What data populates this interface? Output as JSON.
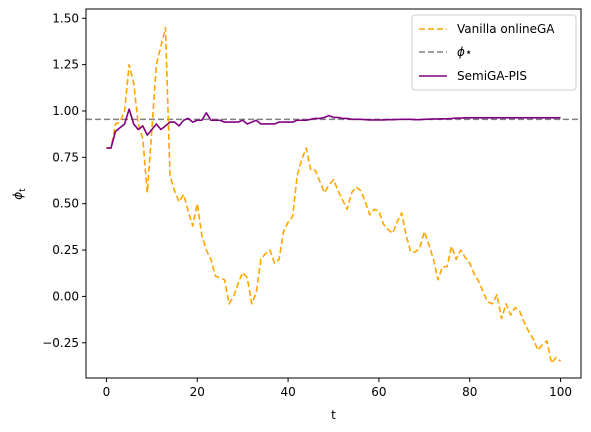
{
  "chart_data": {
    "type": "line",
    "title": "",
    "xlabel": "t",
    "ylabel": "φt",
    "xlim": [
      -4.5,
      104.5
    ],
    "ylim": [
      -0.44,
      1.55
    ],
    "xticks": [
      0,
      20,
      40,
      60,
      80,
      100
    ],
    "xtick_labels": [
      "0",
      "20",
      "40",
      "60",
      "80",
      "100"
    ],
    "yticks": [
      -0.25,
      0.0,
      0.25,
      0.5,
      0.75,
      1.0,
      1.25,
      1.5
    ],
    "ytick_labels": [
      "−0.25",
      "0.00",
      "0.25",
      "0.50",
      "0.75",
      "1.00",
      "1.25",
      "1.50"
    ],
    "grid": false,
    "legend_position": "top-right",
    "legend": {
      "vanilla": "Vanilla onlineGA",
      "phi_star": "ϕ⋆",
      "semiga": "SemiGA-PIS"
    },
    "reference_line": {
      "name": "ϕ⋆",
      "y": 0.955,
      "color": "#808080",
      "style": "dashed"
    },
    "series": [
      {
        "name": "Vanilla onlineGA",
        "color": "#ffa500",
        "style": "dashed",
        "x": [
          0,
          1,
          2,
          3,
          4,
          5,
          6,
          7,
          8,
          9,
          10,
          11,
          12,
          13,
          14,
          15,
          16,
          17,
          18,
          19,
          20,
          21,
          22,
          23,
          24,
          25,
          26,
          27,
          28,
          29,
          30,
          31,
          32,
          33,
          34,
          35,
          36,
          37,
          38,
          39,
          40,
          41,
          42,
          43,
          44,
          45,
          46,
          47,
          48,
          49,
          50,
          51,
          52,
          53,
          54,
          55,
          56,
          57,
          58,
          59,
          60,
          61,
          62,
          63,
          64,
          65,
          66,
          67,
          68,
          69,
          70,
          71,
          72,
          73,
          74,
          75,
          76,
          77,
          78,
          79,
          80,
          81,
          82,
          83,
          84,
          85,
          86,
          87,
          88,
          89,
          90,
          91,
          92,
          93,
          94,
          95,
          96,
          97,
          98,
          99,
          100
        ],
        "values": [
          0.8,
          0.8,
          0.93,
          0.94,
          1.0,
          1.25,
          1.15,
          0.93,
          0.85,
          0.56,
          0.9,
          1.25,
          1.35,
          1.45,
          0.65,
          0.57,
          0.51,
          0.55,
          0.46,
          0.38,
          0.5,
          0.33,
          0.25,
          0.2,
          0.11,
          0.1,
          0.09,
          -0.04,
          0.0,
          0.07,
          0.13,
          0.1,
          -0.04,
          0.02,
          0.2,
          0.23,
          0.25,
          0.18,
          0.2,
          0.35,
          0.4,
          0.43,
          0.65,
          0.74,
          0.8,
          0.68,
          0.68,
          0.62,
          0.56,
          0.6,
          0.63,
          0.57,
          0.52,
          0.47,
          0.56,
          0.59,
          0.57,
          0.51,
          0.44,
          0.47,
          0.46,
          0.39,
          0.36,
          0.34,
          0.4,
          0.45,
          0.33,
          0.24,
          0.24,
          0.26,
          0.35,
          0.28,
          0.2,
          0.09,
          0.16,
          0.16,
          0.27,
          0.2,
          0.25,
          0.21,
          0.18,
          0.12,
          0.08,
          0.02,
          -0.03,
          -0.04,
          0.01,
          -0.12,
          -0.04,
          -0.1,
          -0.06,
          -0.08,
          -0.14,
          -0.19,
          -0.23,
          -0.29,
          -0.26,
          -0.24,
          -0.36,
          -0.33,
          -0.35
        ]
      },
      {
        "name": "SemiGA-PIS",
        "color": "#800080",
        "style": "solid",
        "x": [
          0,
          1,
          2,
          3,
          4,
          5,
          6,
          7,
          8,
          9,
          10,
          11,
          12,
          13,
          14,
          15,
          16,
          17,
          18,
          19,
          20,
          21,
          22,
          23,
          24,
          25,
          26,
          27,
          28,
          29,
          30,
          31,
          32,
          33,
          34,
          35,
          36,
          37,
          38,
          39,
          40,
          41,
          42,
          43,
          44,
          45,
          46,
          47,
          48,
          49,
          50,
          51,
          52,
          53,
          54,
          55,
          56,
          57,
          58,
          59,
          60,
          61,
          62,
          63,
          64,
          65,
          66,
          67,
          68,
          69,
          70,
          71,
          72,
          73,
          74,
          75,
          76,
          77,
          78,
          79,
          80,
          81,
          82,
          83,
          84,
          85,
          86,
          87,
          88,
          89,
          90,
          91,
          92,
          93,
          94,
          95,
          96,
          97,
          98,
          99,
          100
        ],
        "values": [
          0.8,
          0.8,
          0.89,
          0.91,
          0.93,
          1.01,
          0.93,
          0.9,
          0.92,
          0.87,
          0.9,
          0.93,
          0.9,
          0.92,
          0.94,
          0.94,
          0.92,
          0.95,
          0.96,
          0.94,
          0.95,
          0.95,
          0.99,
          0.95,
          0.95,
          0.95,
          0.94,
          0.94,
          0.94,
          0.94,
          0.95,
          0.93,
          0.94,
          0.95,
          0.93,
          0.93,
          0.93,
          0.93,
          0.94,
          0.94,
          0.94,
          0.94,
          0.95,
          0.95,
          0.95,
          0.955,
          0.96,
          0.96,
          0.965,
          0.975,
          0.965,
          0.965,
          0.96,
          0.96,
          0.955,
          0.955,
          0.955,
          0.953,
          0.952,
          0.952,
          0.952,
          0.952,
          0.953,
          0.953,
          0.954,
          0.955,
          0.955,
          0.955,
          0.953,
          0.953,
          0.955,
          0.956,
          0.957,
          0.957,
          0.958,
          0.958,
          0.959,
          0.962,
          0.962,
          0.963,
          0.963,
          0.963,
          0.963,
          0.963,
          0.963,
          0.963,
          0.963,
          0.963,
          0.963,
          0.963,
          0.963,
          0.963,
          0.963,
          0.963,
          0.963,
          0.963,
          0.963,
          0.963,
          0.963,
          0.963,
          0.963
        ]
      }
    ]
  }
}
